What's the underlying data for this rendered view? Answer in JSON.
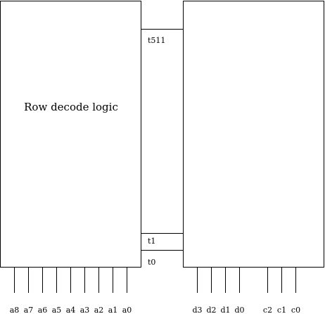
{
  "left_block": {
    "title": "Row decode logic"
  },
  "buses": {
    "t_top": "t511",
    "t_mid": "t1",
    "t_bot": "t0"
  },
  "address_pins": [
    "a8",
    "a7",
    "a6",
    "a5",
    "a4",
    "a3",
    "a2",
    "a1",
    "a0"
  ],
  "data_pins": [
    "d3",
    "d2",
    "d1",
    "d0"
  ],
  "control_pins": [
    "c2",
    "c1",
    "c0"
  ]
}
